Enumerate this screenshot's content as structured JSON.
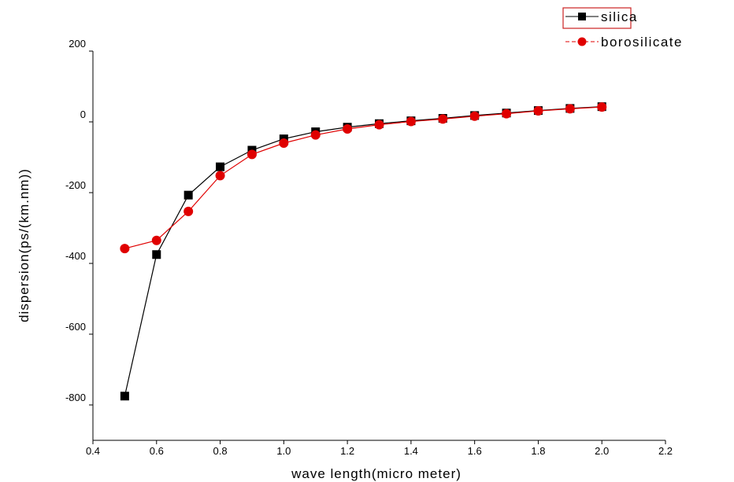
{
  "chart_data": {
    "type": "line",
    "xlabel": "wave length(micro meter)",
    "ylabel": "dispersion(ps/(km.nm))",
    "xlim": [
      0.4,
      2.2
    ],
    "ylim": [
      -900,
      200
    ],
    "x_ticks": [
      "0.4",
      "0.6",
      "0.8",
      "1.0",
      "1.2",
      "1.4",
      "1.6",
      "1.8",
      "2.0",
      "2.2"
    ],
    "y_ticks": [
      "200",
      "0",
      "-200",
      "-400",
      "-600",
      "-800"
    ],
    "x_tick_values": [
      0.4,
      0.6,
      0.8,
      1.0,
      1.2,
      1.4,
      1.6,
      1.8,
      2.0,
      2.2
    ],
    "y_tick_values": [
      200,
      0,
      -200,
      -400,
      -600,
      -800
    ],
    "grid": false,
    "legend_position": "top-right",
    "x": [
      0.5,
      0.6,
      0.7,
      0.8,
      0.9,
      1.0,
      1.1,
      1.2,
      1.3,
      1.4,
      1.5,
      1.6,
      1.7,
      1.8,
      1.9,
      2.0
    ],
    "series": [
      {
        "name": "silica",
        "color": "#000000",
        "marker": "square",
        "values": [
          -775,
          -375,
          -207,
          -127,
          -80,
          -48,
          -28,
          -15,
          -5,
          3,
          10,
          18,
          25,
          32,
          38,
          43
        ]
      },
      {
        "name": "borosilicate",
        "color": "#e00000",
        "marker": "circle",
        "values": [
          -358,
          -335,
          -253,
          -152,
          -92,
          -60,
          -37,
          -20,
          -8,
          1,
          8,
          16,
          23,
          31,
          37,
          42
        ]
      }
    ]
  }
}
